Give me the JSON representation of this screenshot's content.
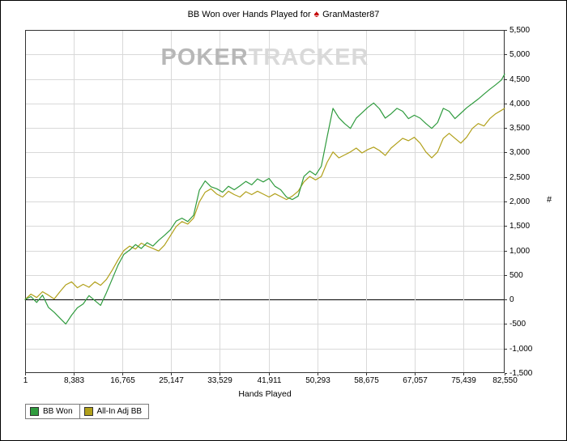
{
  "title": {
    "prefix": "BB Won over Hands Played for",
    "player": "GranMaster87",
    "logo_icon": "spade"
  },
  "watermark": {
    "part1": "POKER",
    "part2": "TRACKER"
  },
  "axes": {
    "x_label": "Hands Played",
    "y_symbol": "#",
    "x_ticks": [
      "1",
      "8,383",
      "16,765",
      "25,147",
      "33,529",
      "41,911",
      "50,293",
      "58,675",
      "67,057",
      "75,439",
      "82,550"
    ],
    "y_ticks": [
      "5,500",
      "5,000",
      "4,500",
      "4,000",
      "3,500",
      "3,000",
      "2,500",
      "2,000",
      "1,500",
      "1,000",
      "500",
      "0",
      "-500",
      "-1,000",
      "-1,500"
    ]
  },
  "legend": [
    {
      "label": "BB Won",
      "color": "#2f9b3e"
    },
    {
      "label": "All-In Adj BB",
      "color": "#b1a01a"
    }
  ],
  "colors": {
    "grid": "#d9d9d9",
    "zero_line": "#000000",
    "plot_border": "#333333",
    "title_spade": "#c40000"
  },
  "chart_data": {
    "type": "line",
    "title": "BB Won over Hands Played for GranMaster87",
    "xlabel": "Hands Played",
    "ylabel": "#",
    "grid": true,
    "legend_position": "bottom-left",
    "xlim": [
      1,
      82550
    ],
    "ylim": [
      -1500,
      5500
    ],
    "y_tick_step": 500,
    "x_tick_values": [
      1,
      8383,
      16765,
      25147,
      33529,
      41911,
      50293,
      58675,
      67057,
      75439,
      82550
    ],
    "x": [
      1,
      1000,
      2000,
      3000,
      4000,
      5000,
      6000,
      7000,
      8000,
      9000,
      10000,
      11000,
      12000,
      13000,
      14000,
      15000,
      16000,
      17000,
      18000,
      19000,
      20000,
      21000,
      22000,
      23000,
      24000,
      25000,
      26000,
      27000,
      28000,
      29000,
      30000,
      31000,
      32000,
      33000,
      34000,
      35000,
      36000,
      37000,
      38000,
      39000,
      40000,
      41000,
      42000,
      43000,
      44000,
      45000,
      46000,
      47000,
      48000,
      49000,
      50000,
      51000,
      52000,
      53000,
      54000,
      55000,
      56000,
      57000,
      58000,
      59000,
      60000,
      61000,
      62000,
      63000,
      64000,
      65000,
      66000,
      67000,
      68000,
      69000,
      70000,
      71000,
      72000,
      73000,
      74000,
      75000,
      76000,
      77000,
      78000,
      79000,
      80000,
      81000,
      82000,
      82550
    ],
    "series": [
      {
        "name": "BB Won",
        "color": "#2f9b3e",
        "values": [
          0,
          60,
          -60,
          90,
          -160,
          -260,
          -380,
          -500,
          -320,
          -170,
          -90,
          80,
          -20,
          -120,
          140,
          420,
          700,
          920,
          1010,
          1120,
          1040,
          1160,
          1090,
          1210,
          1310,
          1420,
          1600,
          1660,
          1590,
          1720,
          2230,
          2420,
          2300,
          2260,
          2190,
          2310,
          2240,
          2320,
          2410,
          2340,
          2460,
          2400,
          2470,
          2310,
          2240,
          2090,
          2040,
          2110,
          2510,
          2620,
          2540,
          2720,
          3320,
          3900,
          3710,
          3590,
          3490,
          3700,
          3810,
          3920,
          4010,
          3890,
          3700,
          3790,
          3900,
          3840,
          3690,
          3760,
          3700,
          3590,
          3490,
          3610,
          3900,
          3840,
          3690,
          3800,
          3910,
          4000,
          4090,
          4190,
          4290,
          4380,
          4480,
          4600
        ]
      },
      {
        "name": "All-In Adj BB",
        "color": "#b1a01a",
        "values": [
          0,
          110,
          40,
          160,
          90,
          10,
          160,
          300,
          360,
          240,
          310,
          250,
          360,
          290,
          410,
          600,
          810,
          1000,
          1090,
          1030,
          1150,
          1090,
          1040,
          990,
          1110,
          1300,
          1490,
          1590,
          1540,
          1660,
          1990,
          2190,
          2260,
          2150,
          2090,
          2210,
          2140,
          2090,
          2200,
          2140,
          2210,
          2150,
          2090,
          2160,
          2100,
          2040,
          2110,
          2210,
          2400,
          2510,
          2440,
          2510,
          2800,
          3010,
          2890,
          2950,
          3010,
          3090,
          2990,
          3060,
          3110,
          3040,
          2940,
          3090,
          3190,
          3290,
          3240,
          3310,
          3190,
          3010,
          2890,
          3010,
          3290,
          3390,
          3290,
          3190,
          3310,
          3490,
          3590,
          3540,
          3690,
          3790,
          3860,
          3900
        ]
      }
    ]
  }
}
